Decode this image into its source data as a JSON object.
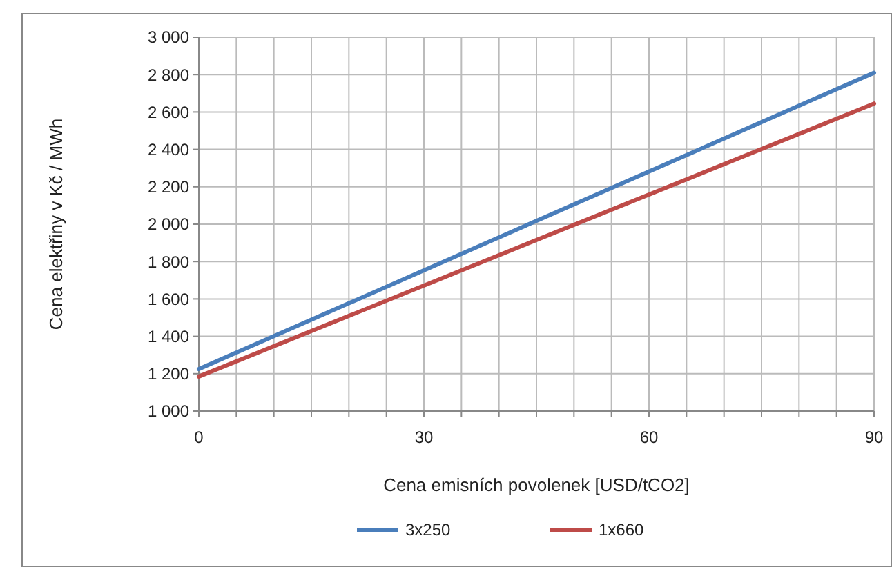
{
  "chart_data": {
    "type": "line",
    "xlabel": "Cena emisních povolenek  [USD/tCO2]",
    "ylabel": "Cena elektřiny v Kč / MWh",
    "x": [
      0,
      90
    ],
    "series": [
      {
        "name": "3x250",
        "color": "#4a7ebb",
        "values": [
          1225,
          2810
        ]
      },
      {
        "name": "1x660",
        "color": "#be4b48",
        "values": [
          1185,
          2645
        ]
      }
    ],
    "xlim": [
      0,
      90
    ],
    "xticks": [
      0,
      {
        "value": 5,
        "label": null
      },
      {
        "value": 10,
        "label": null
      },
      {
        "value": 15,
        "label": null
      },
      {
        "value": 20,
        "label": null
      },
      {
        "value": 25,
        "label": null
      },
      30,
      {
        "value": 35,
        "label": null
      },
      {
        "value": 40,
        "label": null
      },
      {
        "value": 45,
        "label": null
      },
      {
        "value": 50,
        "label": null
      },
      {
        "value": 55,
        "label": null
      },
      60,
      {
        "value": 65,
        "label": null
      },
      {
        "value": 70,
        "label": null
      },
      {
        "value": 75,
        "label": null
      },
      {
        "value": 80,
        "label": null
      },
      {
        "value": 85,
        "label": null
      },
      90
    ],
    "ylim": [
      1000,
      3000
    ],
    "yticks": [
      {
        "value": 1000,
        "label": "1 000"
      },
      {
        "value": 1200,
        "label": "1 200"
      },
      {
        "value": 1400,
        "label": "1 400"
      },
      {
        "value": 1600,
        "label": "1 600"
      },
      {
        "value": 1800,
        "label": "1 800"
      },
      {
        "value": 2000,
        "label": "2 000"
      },
      {
        "value": 2200,
        "label": "2 200"
      },
      {
        "value": 2400,
        "label": "2 400"
      },
      {
        "value": 2600,
        "label": "2 600"
      },
      {
        "value": 2800,
        "label": "2 800"
      },
      {
        "value": 3000,
        "label": "3 000"
      }
    ],
    "grid": true,
    "legend": "bottom",
    "marker": "none",
    "line_style": "solid"
  }
}
